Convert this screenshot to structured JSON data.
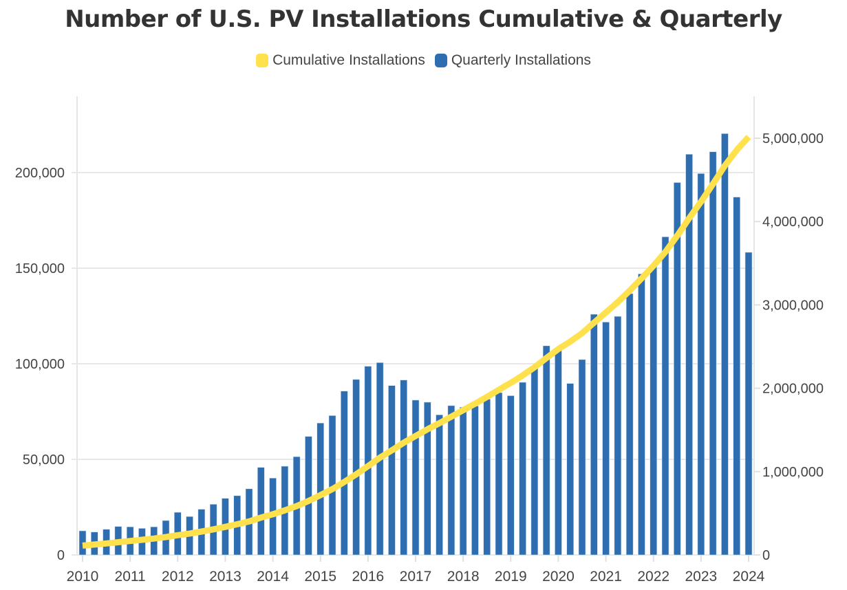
{
  "chart_data": {
    "type": "bar",
    "title": "Number of U.S. PV Installations Cumulative & Quarterly",
    "legend_position": "top",
    "grid": true,
    "x_tick_labels": [
      "2010",
      "2011",
      "2012",
      "2013",
      "2014",
      "2015",
      "2016",
      "2017",
      "2018",
      "2019",
      "2020",
      "2021",
      "2022",
      "2023",
      "2024"
    ],
    "categories": [
      "2010 Q1",
      "2010 Q2",
      "2010 Q3",
      "2010 Q4",
      "2011 Q1",
      "2011 Q2",
      "2011 Q3",
      "2011 Q4",
      "2012 Q1",
      "2012 Q2",
      "2012 Q3",
      "2012 Q4",
      "2013 Q1",
      "2013 Q2",
      "2013 Q3",
      "2013 Q4",
      "2014 Q1",
      "2014 Q2",
      "2014 Q3",
      "2014 Q4",
      "2015 Q1",
      "2015 Q2",
      "2015 Q3",
      "2015 Q4",
      "2016 Q1",
      "2016 Q2",
      "2016 Q3",
      "2016 Q4",
      "2017 Q1",
      "2017 Q2",
      "2017 Q3",
      "2017 Q4",
      "2018 Q1",
      "2018 Q2",
      "2018 Q3",
      "2018 Q4",
      "2019 Q1",
      "2019 Q2",
      "2019 Q3",
      "2019 Q4",
      "2020 Q1",
      "2020 Q2",
      "2020 Q3",
      "2020 Q4",
      "2021 Q1",
      "2021 Q2",
      "2021 Q3",
      "2021 Q4",
      "2022 Q1",
      "2022 Q2",
      "2022 Q3",
      "2022 Q4",
      "2023 Q1",
      "2023 Q2",
      "2023 Q3",
      "2023 Q4",
      "2024 Q1"
    ],
    "left_axis": {
      "ylim": [
        0,
        240000
      ],
      "ticks": [
        "0",
        "50,000",
        "100,000",
        "150,000",
        "200,000"
      ],
      "tick_values": [
        0,
        50000,
        100000,
        150000,
        200000
      ]
    },
    "right_axis": {
      "ylim": [
        0,
        5500000
      ],
      "ticks": [
        "0",
        "1,000,000",
        "2,000,000",
        "3,000,000",
        "4,000,000",
        "5,000,000"
      ],
      "tick_values": [
        0,
        1000000,
        2000000,
        3000000,
        4000000,
        5000000
      ]
    },
    "series": [
      {
        "name": "Cumulative Installations",
        "type": "line",
        "axis": "right",
        "color": "#FFE04D",
        "values": [
          112600,
          124600,
          138000,
          152900,
          167600,
          181500,
          196200,
          214200,
          236500,
          256600,
          280500,
          307000,
          336600,
          367600,
          402200,
          448000,
          488200,
          534600,
          586000,
          648000,
          717000,
          789900,
          875600,
          967400,
          1066100,
          1166700,
          1255300,
          1346800,
          1427800,
          1507700,
          1581000,
          1659100,
          1736400,
          1814300,
          1895800,
          1980700,
          2064000,
          2154300,
          2252500,
          2361900,
          2469400,
          2559100,
          2661300,
          2787200,
          2909000,
          3033800,
          3170500,
          3317500,
          3468700,
          3635100,
          3829900,
          4039500,
          4239000,
          4449900,
          4670300,
          4857500,
          5015800
        ]
      },
      {
        "name": "Quarterly Installations",
        "type": "bar",
        "axis": "left",
        "color": "#2E6DB0",
        "values": [
          12600,
          12000,
          13400,
          14900,
          14700,
          13900,
          14700,
          18000,
          22300,
          20100,
          23900,
          26500,
          29600,
          31000,
          34600,
          45800,
          40200,
          46400,
          51400,
          62000,
          69000,
          72900,
          85700,
          91800,
          98700,
          100600,
          88600,
          91500,
          81000,
          79900,
          73300,
          78100,
          77300,
          77900,
          81500,
          84900,
          83300,
          90300,
          98200,
          109400,
          107500,
          89700,
          102200,
          125900,
          121800,
          124800,
          136700,
          147000,
          151200,
          166400,
          194800,
          209600,
          199500,
          210900,
          220400,
          187200,
          158300
        ]
      }
    ]
  }
}
